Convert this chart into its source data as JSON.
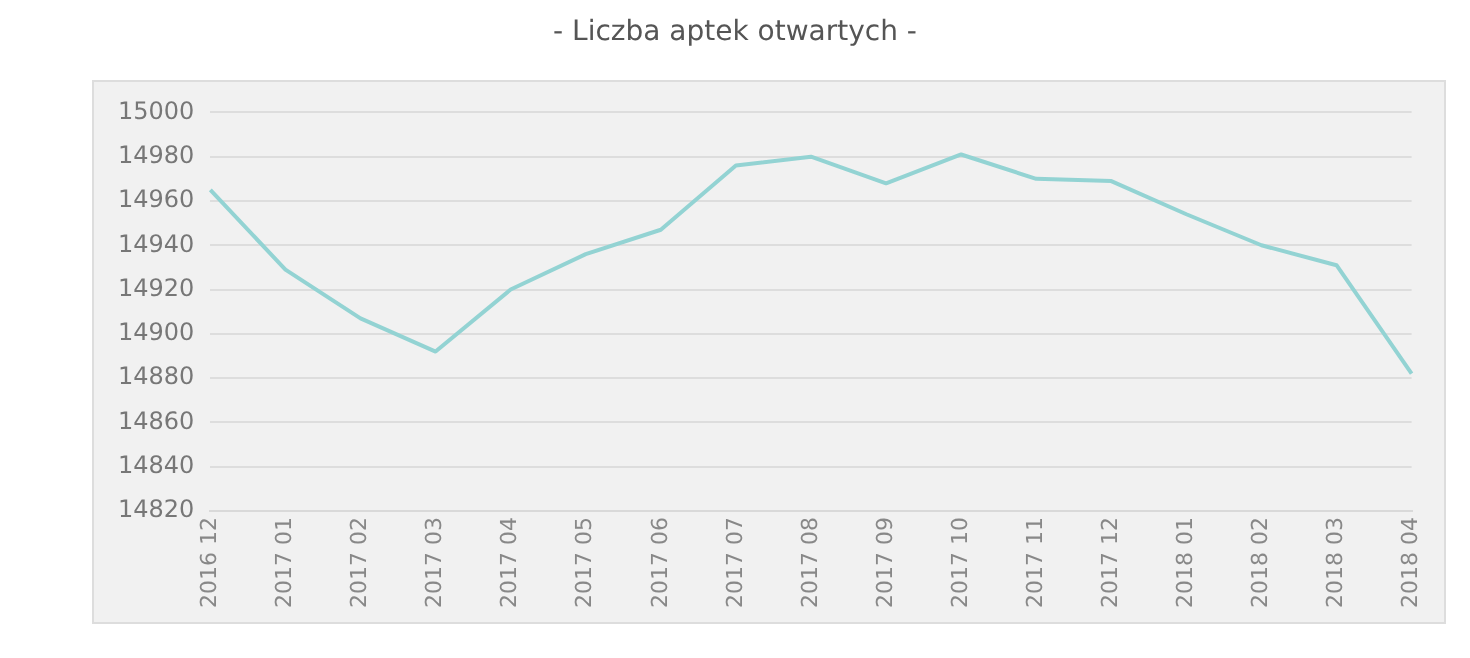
{
  "chart_data": {
    "type": "line",
    "title": "- Liczba aptek otwartych -",
    "categories": [
      "2016 12",
      "2017 01",
      "2017 02",
      "2017 03",
      "2017 04",
      "2017 05",
      "2017 06",
      "2017 07",
      "2017 08",
      "2017 09",
      "2017 10",
      "2017 11",
      "2017 12",
      "2018 01",
      "2018 02",
      "2018 03",
      "2018 04"
    ],
    "series": [
      {
        "color": "#93d3d3",
        "values": [
          14965,
          14929,
          14907,
          14892,
          14920,
          14936,
          14947,
          14976,
          14980,
          14968,
          14981,
          14970,
          14969,
          14954,
          14940,
          14931,
          14882
        ]
      }
    ],
    "ylim": [
      14820,
      15000
    ],
    "yticks": [
      14820,
      14840,
      14860,
      14880,
      14900,
      14920,
      14940,
      14960,
      14980,
      15000
    ],
    "grid": "y",
    "legend": false,
    "marker": "none",
    "line_style": "solid"
  }
}
